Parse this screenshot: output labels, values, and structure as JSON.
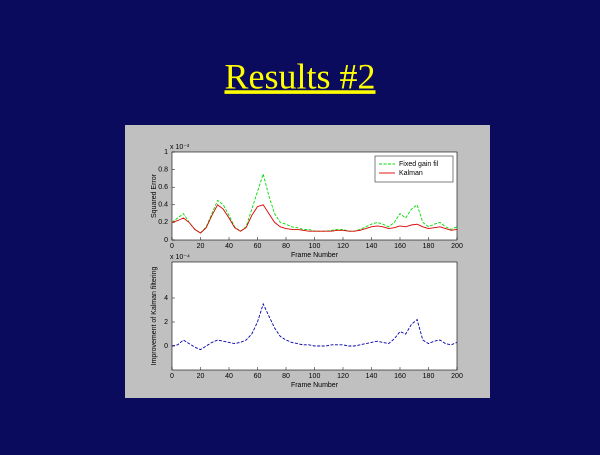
{
  "slide_title": "Results #2",
  "chart_data": [
    {
      "type": "line",
      "xlabel": "Frame Number",
      "ylabel": "Squared Error",
      "y_multiplier": "x 10⁻³",
      "x": [
        0,
        4,
        8,
        12,
        16,
        20,
        24,
        28,
        32,
        36,
        40,
        44,
        48,
        52,
        56,
        60,
        64,
        68,
        72,
        76,
        80,
        84,
        88,
        92,
        96,
        100,
        104,
        108,
        112,
        116,
        120,
        124,
        128,
        132,
        136,
        140,
        144,
        148,
        152,
        156,
        160,
        164,
        168,
        172,
        176,
        180,
        184,
        188,
        192,
        196,
        200
      ],
      "series": [
        {
          "name": "Fixed gain fil",
          "color": "#00dd00",
          "dash": true,
          "values": [
            0.2,
            0.25,
            0.3,
            0.2,
            0.12,
            0.08,
            0.15,
            0.3,
            0.45,
            0.4,
            0.28,
            0.15,
            0.1,
            0.15,
            0.35,
            0.55,
            0.75,
            0.5,
            0.3,
            0.2,
            0.18,
            0.15,
            0.14,
            0.12,
            0.12,
            0.1,
            0.1,
            0.1,
            0.11,
            0.12,
            0.12,
            0.1,
            0.1,
            0.12,
            0.15,
            0.18,
            0.2,
            0.18,
            0.15,
            0.2,
            0.3,
            0.25,
            0.35,
            0.4,
            0.2,
            0.15,
            0.18,
            0.2,
            0.15,
            0.12,
            0.15
          ]
        },
        {
          "name": "Kalman",
          "color": "#dd0000",
          "dash": false,
          "values": [
            0.2,
            0.22,
            0.25,
            0.2,
            0.12,
            0.08,
            0.14,
            0.28,
            0.4,
            0.35,
            0.25,
            0.14,
            0.1,
            0.14,
            0.28,
            0.38,
            0.4,
            0.3,
            0.2,
            0.15,
            0.13,
            0.12,
            0.12,
            0.11,
            0.1,
            0.1,
            0.1,
            0.1,
            0.1,
            0.11,
            0.11,
            0.1,
            0.1,
            0.11,
            0.13,
            0.15,
            0.16,
            0.15,
            0.13,
            0.14,
            0.16,
            0.15,
            0.17,
            0.18,
            0.15,
            0.13,
            0.14,
            0.15,
            0.13,
            0.11,
            0.12
          ]
        }
      ],
      "xlim": [
        0,
        200
      ],
      "xticks": [
        0,
        20,
        40,
        60,
        80,
        100,
        120,
        140,
        160,
        180,
        200
      ],
      "ylim": [
        0,
        1
      ],
      "yticks": [
        0,
        0.2,
        0.4,
        0.6,
        0.8,
        1
      ],
      "legend": "upper right"
    },
    {
      "type": "line",
      "xlabel": "Frame Number",
      "ylabel": "Improvement of Kalman filtering",
      "y_multiplier": "x 10⁻⁴",
      "x": [
        0,
        4,
        8,
        12,
        16,
        20,
        24,
        28,
        32,
        36,
        40,
        44,
        48,
        52,
        56,
        60,
        64,
        68,
        72,
        76,
        80,
        84,
        88,
        92,
        96,
        100,
        104,
        108,
        112,
        116,
        120,
        124,
        128,
        132,
        136,
        140,
        144,
        148,
        152,
        156,
        160,
        164,
        168,
        172,
        176,
        180,
        184,
        188,
        192,
        196,
        200
      ],
      "series": [
        {
          "color": "#0000aa",
          "dash": true,
          "values": [
            0,
            0.1,
            0.5,
            0.2,
            -0.1,
            -0.3,
            0,
            0.3,
            0.5,
            0.4,
            0.3,
            0.2,
            0.3,
            0.5,
            1,
            2,
            3.5,
            2.5,
            1.5,
            0.8,
            0.5,
            0.3,
            0.2,
            0.1,
            0.1,
            0,
            0,
            0,
            0.1,
            0.1,
            0.1,
            0,
            0,
            0.1,
            0.2,
            0.3,
            0.4,
            0.3,
            0.2,
            0.6,
            1.2,
            1,
            1.8,
            2.2,
            0.5,
            0.2,
            0.4,
            0.5,
            0.2,
            0.1,
            0.3
          ]
        }
      ],
      "xlim": [
        0,
        200
      ],
      "xticks": [
        0,
        20,
        40,
        60,
        80,
        100,
        120,
        140,
        160,
        180,
        200
      ],
      "ylim": [
        -2,
        7
      ],
      "yticks": [
        0,
        2,
        4
      ]
    }
  ]
}
